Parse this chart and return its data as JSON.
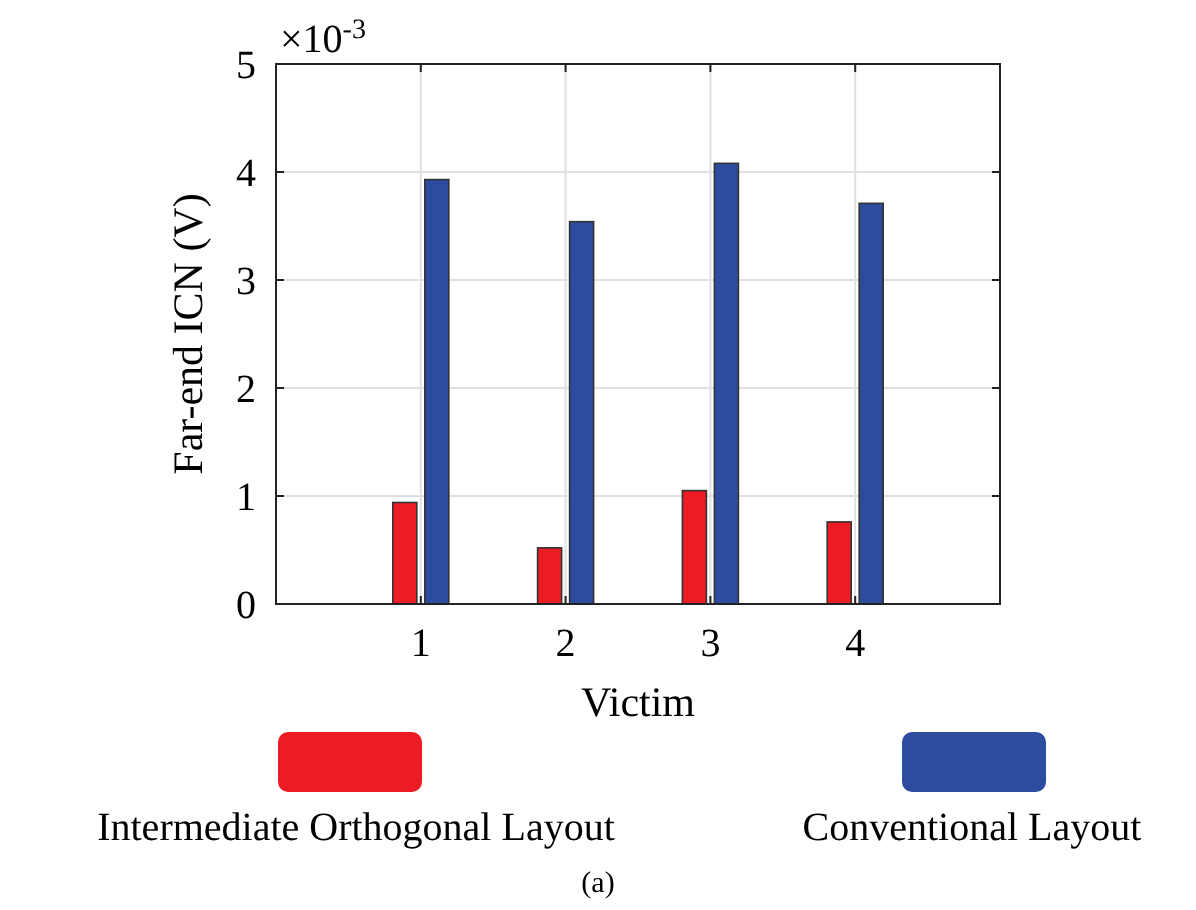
{
  "chart_data": {
    "type": "bar",
    "xlabel": "Victim",
    "ylabel": "Far-end ICN (V)",
    "x": [
      1,
      2,
      3,
      4
    ],
    "xlim": [
      0,
      5
    ],
    "xticks": [
      1,
      2,
      3,
      4
    ],
    "ylim": [
      0,
      5
    ],
    "yticks": [
      0,
      1,
      2,
      3,
      4,
      5
    ],
    "series": [
      {
        "name": "Intermediate Orthogonal Layout",
        "color": "#ed1c24",
        "values": [
          0.94,
          0.52,
          1.05,
          0.76
        ]
      },
      {
        "name": "Conventional Layout",
        "color": "#2b4c9f",
        "values": [
          3.93,
          3.54,
          4.08,
          3.71
        ]
      }
    ],
    "grid": true,
    "legend": "bottom",
    "annotations": [
      "×10$^{-3}$",
      "(a)"
    ]
  }
}
